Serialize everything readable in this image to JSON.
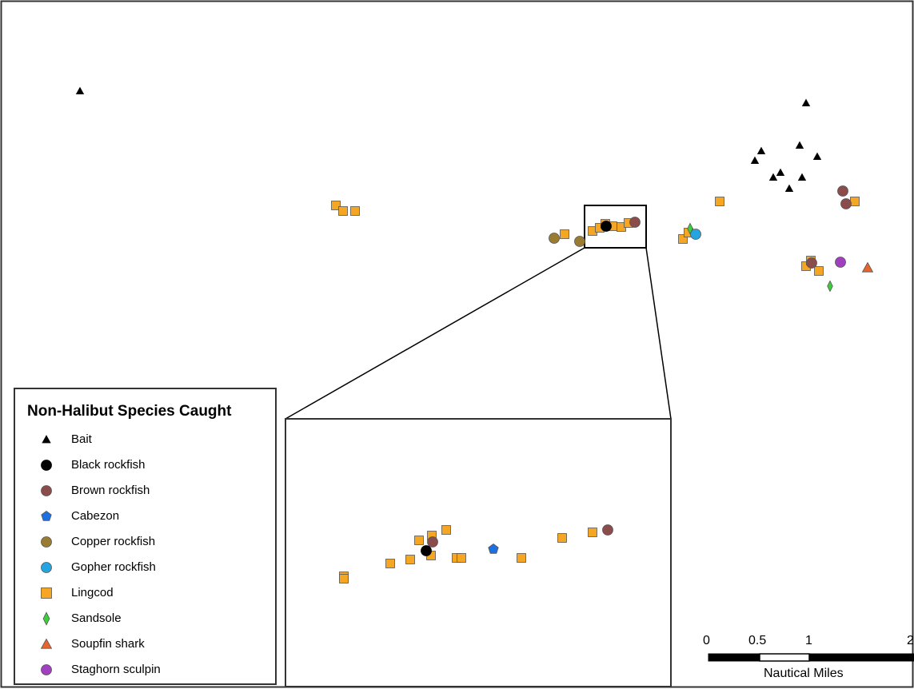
{
  "legend": {
    "title": "Non-Halibut Species Caught",
    "items": [
      {
        "label": "Bait",
        "symbol": "triangle",
        "color": "#000000",
        "icon": "bait-icon"
      },
      {
        "label": "Black rockfish",
        "symbol": "circle",
        "color": "#000000",
        "icon": "black-rockfish-icon"
      },
      {
        "label": "Brown rockfish",
        "symbol": "circle",
        "color": "#8b4c4c",
        "icon": "brown-rockfish-icon"
      },
      {
        "label": "Cabezon",
        "symbol": "pentagon",
        "color": "#1e6fe0",
        "icon": "cabezon-icon"
      },
      {
        "label": "Copper rockfish",
        "symbol": "circle",
        "color": "#9a7b32",
        "icon": "copper-rockfish-icon"
      },
      {
        "label": "Gopher rockfish",
        "symbol": "circle",
        "color": "#25a4e0",
        "icon": "gopher-rockfish-icon"
      },
      {
        "label": "Lingcod",
        "symbol": "square",
        "color": "#f5a623",
        "icon": "lingcod-icon"
      },
      {
        "label": "Sandsole",
        "symbol": "diamond",
        "color": "#3ccf3c",
        "icon": "sandsole-icon"
      },
      {
        "label": "Soupfin shark",
        "symbol": "triangle",
        "color": "#e8642c",
        "icon": "soupfin-shark-icon"
      },
      {
        "label": "Staghorn sculpin",
        "symbol": "circle",
        "color": "#a040c0",
        "icon": "staghorn-sculpin-icon"
      }
    ]
  },
  "scale_bar": {
    "ticks": [
      "0",
      "0.5",
      "1",
      "2"
    ],
    "unit": "Nautical Miles"
  }
}
